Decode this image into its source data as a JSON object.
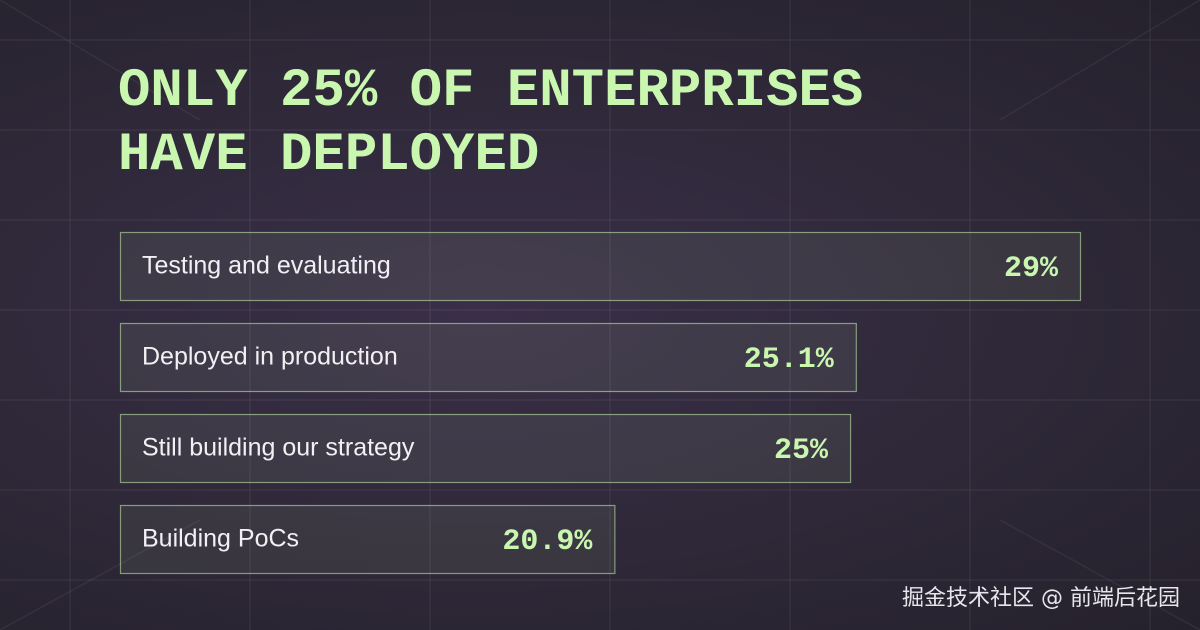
{
  "chart_data": {
    "type": "bar",
    "orientation": "horizontal",
    "title": "ONLY 25% OF ENTERPRISES HAVE DEPLOYED",
    "categories": [
      "Testing and evaluating",
      "Deployed in production",
      "Still building our strategy",
      "Building PoCs"
    ],
    "values": [
      29,
      25.1,
      25,
      20.9
    ],
    "value_labels": [
      "29%",
      "25.1%",
      "25%",
      "20.9%"
    ],
    "xlim": [
      12.3,
      29
    ],
    "color": "#c9f7b0"
  },
  "watermark": "掘金技术社区 @ 前端后花园"
}
